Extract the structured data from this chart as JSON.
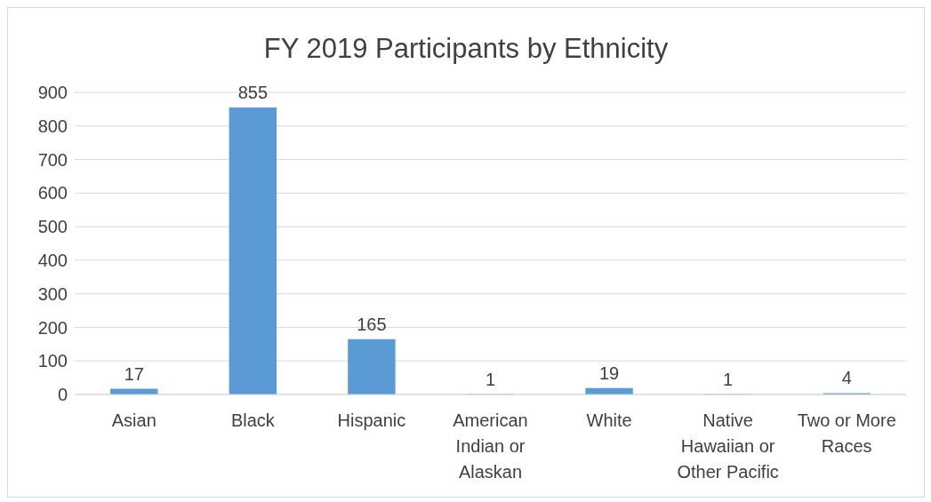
{
  "chart_data": {
    "type": "bar",
    "title": "FY 2019 Participants by Ethnicity",
    "categories": [
      "Asian",
      "Black",
      "Hispanic",
      "American Indian or Alaskan",
      "White",
      "Native Hawaiian or Other Pacific",
      "Two or More Races"
    ],
    "values": [
      17,
      855,
      165,
      1,
      19,
      1,
      4
    ],
    "color": "#5b9bd5",
    "ylim": [
      0,
      900
    ],
    "yticks": [
      0,
      100,
      200,
      300,
      400,
      500,
      600,
      700,
      800,
      900
    ],
    "grid": "y",
    "data_labels": true
  }
}
